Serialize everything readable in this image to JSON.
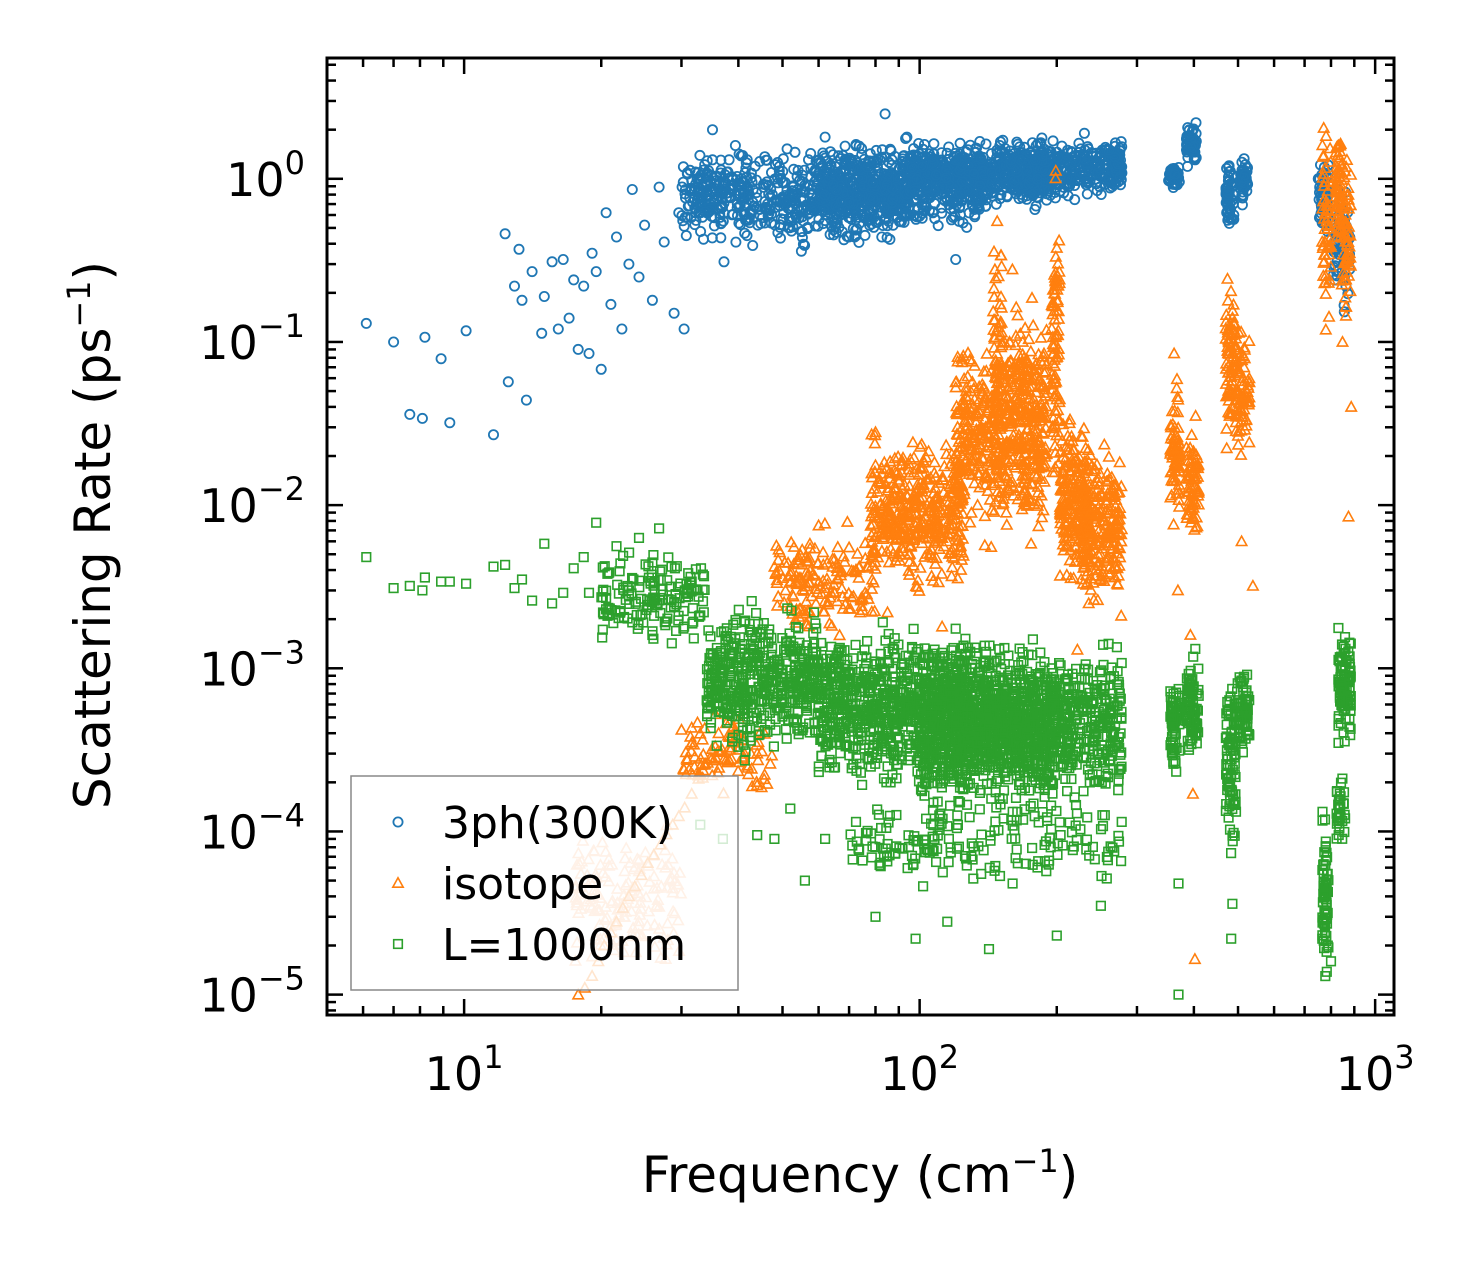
{
  "chart_data": {
    "type": "scatter",
    "title": "",
    "xlabel": {
      "text": "Frequency (cm",
      "sup": "−1",
      "suffix": ")"
    },
    "ylabel": {
      "text": "Scattering Rate (ps",
      "sup": "−1",
      "suffix": ")"
    },
    "xscale": "log",
    "yscale": "log",
    "xlim": [
      5.0,
      1100.0
    ],
    "ylim": [
      7.5e-06,
      5.5
    ],
    "x_ticks": [
      {
        "value": 10,
        "base": "10",
        "exp": "1"
      },
      {
        "value": 100,
        "base": "10",
        "exp": "2"
      },
      {
        "value": 1000,
        "base": "10",
        "exp": "3"
      }
    ],
    "y_ticks": [
      {
        "value": 1e-05,
        "base": "10",
        "exp": "−5"
      },
      {
        "value": 0.0001,
        "base": "10",
        "exp": "−4"
      },
      {
        "value": 0.001,
        "base": "10",
        "exp": "−3"
      },
      {
        "value": 0.01,
        "base": "10",
        "exp": "−2"
      },
      {
        "value": 0.1,
        "base": "10",
        "exp": "−1"
      },
      {
        "value": 1,
        "base": "10",
        "exp": "0"
      }
    ],
    "legend_position": "lower-left",
    "series": [
      {
        "name": "3ph(300K)",
        "marker": "circle",
        "color": "#1f77b4",
        "points": [
          [
            6.1,
            0.13
          ],
          [
            7.0,
            0.1
          ],
          [
            7.6,
            0.036
          ],
          [
            8.1,
            0.034
          ],
          [
            8.2,
            0.107
          ],
          [
            8.9,
            0.079
          ],
          [
            9.3,
            0.032
          ],
          [
            10.1,
            0.117
          ],
          [
            11.6,
            0.027
          ],
          [
            12.3,
            0.46
          ],
          [
            12.5,
            0.057
          ],
          [
            12.9,
            0.22
          ],
          [
            13.2,
            0.37
          ],
          [
            13.4,
            0.18
          ],
          [
            13.7,
            0.044
          ],
          [
            14.1,
            0.27
          ],
          [
            14.8,
            0.113
          ],
          [
            15.0,
            0.19
          ],
          [
            15.6,
            0.31
          ],
          [
            16.1,
            0.12
          ],
          [
            16.5,
            0.32
          ],
          [
            17.0,
            0.14
          ],
          [
            17.4,
            0.24
          ],
          [
            17.8,
            0.09
          ],
          [
            18.3,
            0.22
          ],
          [
            18.8,
            0.085
          ],
          [
            19.1,
            0.35
          ],
          [
            19.5,
            0.27
          ],
          [
            20.0,
            0.068
          ],
          [
            20.5,
            0.62
          ],
          [
            21.0,
            0.17
          ],
          [
            21.6,
            0.44
          ],
          [
            22.2,
            0.12
          ],
          [
            23.0,
            0.3
          ],
          [
            23.4,
            0.86
          ],
          [
            24.2,
            0.25
          ],
          [
            24.9,
            0.52
          ],
          [
            25.9,
            0.18
          ],
          [
            26.8,
            0.89
          ],
          [
            27.5,
            0.41
          ],
          [
            28.9,
            0.15
          ],
          [
            29.6,
            0.62
          ],
          [
            30.4,
            0.12
          ],
          [
            32.2,
            1.1
          ],
          [
            34.0,
            0.84
          ],
          [
            35.1,
            2.0
          ],
          [
            37.2,
            0.31
          ],
          [
            39.4,
            1.6
          ],
          [
            43.0,
            0.39
          ],
          [
            46.0,
            1.3
          ],
          [
            52.0,
            0.55
          ],
          [
            55.0,
            0.36
          ],
          [
            62.0,
            1.8
          ],
          [
            72.0,
            0.44
          ],
          [
            84.0,
            2.5
          ],
          [
            97.0,
            1.4
          ],
          [
            120.0,
            0.32
          ],
          [
            150.0,
            1.6
          ],
          [
            190.0,
            0.74
          ],
          [
            230.0,
            1.9
          ],
          [
            260.0,
            1.5
          ],
          [
            276.0,
            0.92
          ]
        ],
        "clusters": [
          {
            "xmin": 30,
            "xmax": 95,
            "ymin": 0.35,
            "ymax": 1.7,
            "n": 650
          },
          {
            "xmin": 60,
            "xmax": 140,
            "ymin": 0.4,
            "ymax": 2.0,
            "n": 500
          },
          {
            "xmin": 95,
            "xmax": 200,
            "ymin": 0.6,
            "ymax": 1.9,
            "n": 450
          },
          {
            "xmin": 150,
            "xmax": 278,
            "ymin": 0.7,
            "ymax": 1.9,
            "n": 350
          },
          {
            "xmin": 268,
            "xmax": 278,
            "ymin": 0.9,
            "ymax": 1.8,
            "n": 40
          },
          {
            "xmin": 352,
            "xmax": 372,
            "ymin": 0.8,
            "ymax": 1.3,
            "n": 45
          },
          {
            "xmin": 385,
            "xmax": 405,
            "ymin": 1.1,
            "ymax": 2.4,
            "n": 55
          },
          {
            "xmin": 470,
            "xmax": 490,
            "ymin": 0.45,
            "ymax": 1.4,
            "n": 55
          },
          {
            "xmin": 505,
            "xmax": 525,
            "ymin": 0.6,
            "ymax": 1.6,
            "n": 45
          },
          {
            "xmin": 750,
            "xmax": 790,
            "ymin": 0.33,
            "ymax": 1.8,
            "n": 55
          },
          {
            "xmin": 810,
            "xmax": 880,
            "ymin": 0.13,
            "ymax": 1.3,
            "n": 75
          }
        ]
      },
      {
        "name": "isotope",
        "marker": "triangle",
        "color": "#ff7f0e",
        "points": [
          [
            17.8,
            1e-05
          ],
          [
            18.4,
            1.1e-05
          ],
          [
            19.1,
            1.3e-05
          ],
          [
            19.7,
            1.6e-05
          ],
          [
            20.3,
            2e-05
          ],
          [
            21.0,
            2.4e-05
          ],
          [
            21.6,
            2.8e-05
          ],
          [
            22.3,
            3.4e-05
          ],
          [
            23.0,
            4e-05
          ],
          [
            23.7,
            4.6e-05
          ],
          [
            24.5,
            5.4e-05
          ],
          [
            25.3,
            6.4e-05
          ],
          [
            26.1,
            7.2e-05
          ],
          [
            27.0,
            8.3e-05
          ],
          [
            27.8,
            9.6e-05
          ],
          [
            28.7,
            0.00011
          ],
          [
            29.6,
            0.000124
          ],
          [
            30.5,
            0.00014
          ],
          [
            31.6,
            0.00017
          ],
          [
            32.7,
            0.00021
          ],
          [
            33.8,
            0.00026
          ],
          [
            35.0,
            0.00032
          ],
          [
            36.2,
            0.0004
          ],
          [
            37.6,
            0.00046
          ],
          [
            39.0,
            0.00035
          ],
          [
            41.0,
            0.00036
          ],
          [
            44.0,
            0.0003
          ],
          [
            47.0,
            0.00026
          ],
          [
            52.0,
            0.0024
          ],
          [
            57.0,
            0.0045
          ],
          [
            60.0,
            0.0075
          ],
          [
            66.0,
            0.0035
          ],
          [
            70.0,
            0.0055
          ],
          [
            74.0,
            0.0022
          ],
          [
            80.0,
            0.028
          ],
          [
            85.0,
            0.0022
          ],
          [
            112.0,
            0.0018
          ],
          [
            148.0,
            0.55
          ],
          [
            155.0,
            0.009
          ],
          [
            199.0,
            1.12
          ],
          [
            206.0,
            0.013
          ],
          [
            222.0,
            0.0013
          ],
          [
            235.0,
            0.0025
          ],
          [
            277.0,
            0.0021
          ],
          [
            362.0,
            0.085
          ],
          [
            369.0,
            0.003
          ],
          [
            393.0,
            0.0016
          ],
          [
            398.0,
            0.00017
          ],
          [
            402.0,
            1.65e-05
          ],
          [
            484.0,
            0.12
          ],
          [
            509.0,
            0.006
          ],
          [
            539.0,
            0.0032
          ],
          [
            848.0,
            0.1
          ],
          [
            874.0,
            0.0085
          ],
          [
            886.0,
            0.04
          ]
        ],
        "clusters": [
          {
            "xmin": 17.5,
            "xmax": 30,
            "ymin": 1e-05,
            "ymax": 0.00014,
            "n": 160,
            "color": "#ffbb88"
          },
          {
            "xmin": 30,
            "xmax": 48,
            "ymin": 0.00015,
            "ymax": 0.0006,
            "n": 90
          },
          {
            "xmin": 48,
            "xmax": 80,
            "ymin": 0.0012,
            "ymax": 0.009,
            "n": 160
          },
          {
            "xmin": 78,
            "xmax": 125,
            "ymin": 0.0025,
            "ymax": 0.032,
            "n": 420
          },
          {
            "xmin": 120,
            "xmax": 155,
            "ymin": 0.005,
            "ymax": 0.14,
            "n": 300
          },
          {
            "xmin": 145,
            "xmax": 152,
            "ymin": 0.01,
            "ymax": 0.5,
            "n": 60
          },
          {
            "xmin": 155,
            "xmax": 190,
            "ymin": 0.004,
            "ymax": 0.3,
            "n": 320
          },
          {
            "xmin": 195,
            "xmax": 203,
            "ymin": 0.008,
            "ymax": 1.1,
            "n": 90
          },
          {
            "xmin": 203,
            "xmax": 235,
            "ymin": 0.0025,
            "ymax": 0.05,
            "n": 200
          },
          {
            "xmin": 225,
            "xmax": 278,
            "ymin": 0.002,
            "ymax": 0.03,
            "n": 230
          },
          {
            "xmin": 355,
            "xmax": 372,
            "ymin": 0.006,
            "ymax": 0.08,
            "n": 70
          },
          {
            "xmin": 385,
            "xmax": 410,
            "ymin": 0.004,
            "ymax": 0.04,
            "n": 70
          },
          {
            "xmin": 470,
            "xmax": 495,
            "ymin": 0.015,
            "ymax": 0.3,
            "n": 80
          },
          {
            "xmin": 495,
            "xmax": 530,
            "ymin": 0.015,
            "ymax": 0.15,
            "n": 70
          },
          {
            "xmin": 765,
            "xmax": 800,
            "ymin": 0.1,
            "ymax": 2.8,
            "n": 60
          },
          {
            "xmin": 820,
            "xmax": 845,
            "ymin": 0.3,
            "ymax": 2.9,
            "n": 60
          },
          {
            "xmin": 845,
            "xmax": 885,
            "ymin": 0.1,
            "ymax": 2.0,
            "n": 60
          }
        ]
      },
      {
        "name": "L=1000nm",
        "marker": "square",
        "color": "#2ca02c",
        "points": [
          [
            6.1,
            0.0048
          ],
          [
            7.0,
            0.0031
          ],
          [
            7.6,
            0.0032
          ],
          [
            8.1,
            0.003
          ],
          [
            8.2,
            0.0036
          ],
          [
            8.9,
            0.0034
          ],
          [
            9.3,
            0.0034
          ],
          [
            10.1,
            0.0033
          ],
          [
            11.6,
            0.0042
          ],
          [
            12.3,
            0.0043
          ],
          [
            12.9,
            0.0031
          ],
          [
            13.4,
            0.0035
          ],
          [
            14.1,
            0.0026
          ],
          [
            15.0,
            0.0058
          ],
          [
            15.6,
            0.0025
          ],
          [
            16.5,
            0.0029
          ],
          [
            17.4,
            0.0041
          ],
          [
            18.3,
            0.0048
          ],
          [
            18.8,
            0.0029
          ],
          [
            19.5,
            0.0078
          ],
          [
            20.5,
            0.0023
          ],
          [
            21.6,
            0.0056
          ],
          [
            23.0,
            0.003
          ],
          [
            24.2,
            0.0063
          ],
          [
            25.9,
            0.0016
          ],
          [
            26.8,
            0.0072
          ],
          [
            28.9,
            0.0024
          ],
          [
            30.4,
            0.0018
          ],
          [
            33.0,
            0.00011
          ],
          [
            37.0,
            9e-05
          ],
          [
            40.0,
            0.00033
          ],
          [
            44.0,
            9.5e-05
          ],
          [
            48.0,
            9e-05
          ],
          [
            52.0,
            0.000138
          ],
          [
            56.0,
            5e-05
          ],
          [
            62.0,
            9e-05
          ],
          [
            80.0,
            3e-05
          ],
          [
            98.0,
            2.2e-05
          ],
          [
            115.0,
            2.8e-05
          ],
          [
            142.0,
            1.9e-05
          ],
          [
            160.0,
            4.8e-05
          ],
          [
            200.0,
            2.3e-05
          ],
          [
            250.0,
            3.5e-05
          ],
          [
            370.0,
            1e-05
          ],
          [
            370.0,
            4.8e-05
          ],
          [
            483.0,
            2.2e-05
          ],
          [
            486.0,
            3.6e-05
          ],
          [
            800.0,
            1.6e-05
          ]
        ],
        "clusters": [
          {
            "xmin": 20,
            "xmax": 34,
            "ymin": 0.0012,
            "ymax": 0.006,
            "n": 150
          },
          {
            "xmin": 34,
            "xmax": 60,
            "ymin": 0.00025,
            "ymax": 0.003,
            "n": 500
          },
          {
            "xmin": 60,
            "xmax": 140,
            "ymin": 0.00015,
            "ymax": 0.0022,
            "n": 900
          },
          {
            "xmin": 100,
            "xmax": 200,
            "ymin": 0.0001,
            "ymax": 0.0018,
            "n": 700
          },
          {
            "xmin": 140,
            "xmax": 278,
            "ymin": 0.00012,
            "ymax": 0.0018,
            "n": 600
          },
          {
            "xmin": 70,
            "xmax": 160,
            "ymin": 4e-05,
            "ymax": 0.00018,
            "n": 110
          },
          {
            "xmin": 160,
            "xmax": 278,
            "ymin": 4e-05,
            "ymax": 0.0002,
            "n": 70
          },
          {
            "xmin": 355,
            "xmax": 372,
            "ymin": 0.00018,
            "ymax": 0.0011,
            "n": 70
          },
          {
            "xmin": 385,
            "xmax": 410,
            "ymin": 0.0002,
            "ymax": 0.0015,
            "n": 80
          },
          {
            "xmin": 470,
            "xmax": 495,
            "ymin": 6e-05,
            "ymax": 0.0012,
            "n": 80
          },
          {
            "xmin": 495,
            "xmax": 530,
            "ymin": 0.00025,
            "ymax": 0.0012,
            "n": 70
          },
          {
            "xmin": 765,
            "xmax": 790,
            "ymin": 1e-05,
            "ymax": 0.00016,
            "n": 70
          },
          {
            "xmin": 830,
            "xmax": 885,
            "ymin": 0.0003,
            "ymax": 0.002,
            "n": 100
          },
          {
            "xmin": 820,
            "xmax": 860,
            "ymin": 6e-05,
            "ymax": 0.0003,
            "n": 30
          }
        ]
      }
    ]
  }
}
